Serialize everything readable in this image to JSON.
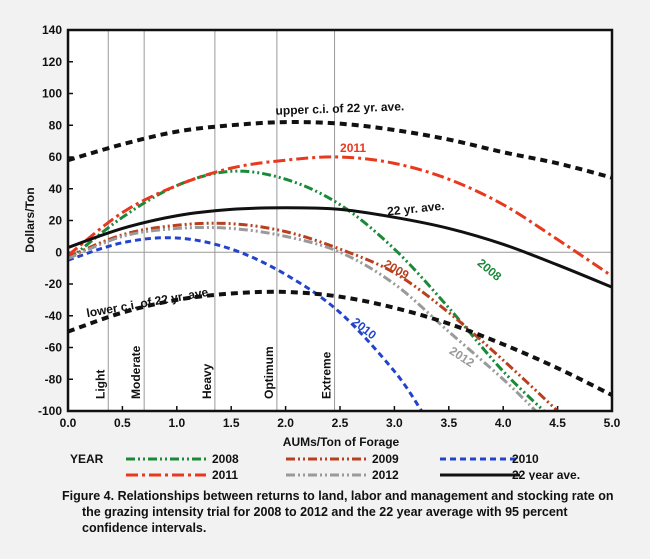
{
  "chart_data": {
    "type": "line",
    "ylabel": "Dollars/Ton",
    "xlabel": "AUMs/Ton of Forage",
    "xlim": [
      0.0,
      5.0
    ],
    "ylim": [
      -100,
      140
    ],
    "x_ticks": [
      "0.0",
      "0.5",
      "1.0",
      "1.5",
      "2.0",
      "2.5",
      "3.0",
      "3.5",
      "4.0",
      "4.5",
      "5.0"
    ],
    "y_ticks": [
      "-100",
      "-80",
      "-60",
      "-40",
      "-20",
      "0",
      "20",
      "40",
      "60",
      "80",
      "100",
      "120",
      "140"
    ],
    "stocking_rates": [
      {
        "label": "Light",
        "x": 0.37
      },
      {
        "label": "Moderate",
        "x": 0.7
      },
      {
        "label": "Heavy",
        "x": 1.35
      },
      {
        "label": "Optimum",
        "x": 1.92
      },
      {
        "label": "Extreme",
        "x": 2.45
      }
    ],
    "legend_title": "YEAR",
    "series": [
      {
        "name": "2008",
        "color": "#1a8a3a",
        "style": "dash-dot-dot",
        "x": [
          0,
          0.5,
          1.0,
          1.5,
          2.0,
          2.5,
          3.0,
          3.5,
          4.0,
          4.5
        ],
        "y": [
          -5,
          22,
          42,
          51,
          46,
          30,
          2,
          -35,
          -75,
          -108
        ]
      },
      {
        "name": "2009",
        "color": "#b8401e",
        "style": "dash-dot-dot",
        "x": [
          0,
          0.5,
          1.0,
          1.5,
          2.0,
          2.5,
          3.0,
          3.5,
          4.0,
          4.5
        ],
        "y": [
          -3,
          11,
          17,
          18,
          13,
          2,
          -13,
          -38,
          -68,
          -100
        ]
      },
      {
        "name": "2010",
        "color": "#2244cc",
        "style": "dash",
        "x": [
          0,
          0.5,
          1.0,
          1.5,
          2.0,
          2.5,
          3.0,
          3.25
        ],
        "y": [
          -5,
          6,
          9,
          2,
          -14,
          -38,
          -75,
          -100
        ]
      },
      {
        "name": "2011",
        "color": "#e8381e",
        "style": "dash-dot",
        "x": [
          0,
          0.5,
          1.0,
          1.5,
          2.0,
          2.5,
          3.0,
          3.5,
          4.0,
          4.5,
          5.0
        ],
        "y": [
          -2,
          25,
          42,
          53,
          58,
          60,
          56,
          46,
          30,
          8,
          -15
        ]
      },
      {
        "name": "2012",
        "color": "#9a9a9a",
        "style": "dash-dot-dot",
        "x": [
          0,
          0.5,
          1.0,
          1.5,
          2.0,
          2.5,
          3.0,
          3.5,
          4.0,
          4.3
        ],
        "y": [
          -4,
          10,
          15,
          15,
          10,
          0,
          -20,
          -50,
          -80,
          -100
        ]
      },
      {
        "name": "22 year ave.",
        "color": "#111111",
        "style": "solid",
        "x": [
          0,
          0.5,
          1.0,
          1.5,
          2.0,
          2.5,
          3.0,
          3.5,
          4.0,
          4.5,
          5.0
        ],
        "y": [
          3,
          15,
          23,
          27,
          28,
          27,
          22,
          15,
          5,
          -8,
          -22
        ]
      },
      {
        "name": "upper c.i. of 22 yr. ave.",
        "color": "#111111",
        "style": "dash-bold",
        "legend": false,
        "x": [
          0,
          0.5,
          1.0,
          1.5,
          2.0,
          2.5,
          3.0,
          3.5,
          4.0,
          4.5,
          5.0
        ],
        "y": [
          58,
          68,
          76,
          80,
          82,
          81,
          77,
          71,
          63,
          56,
          47
        ]
      },
      {
        "name": "lower c.i. of 22 yr. ave.",
        "color": "#111111",
        "style": "dash-bold",
        "legend": false,
        "x": [
          0,
          0.5,
          1.0,
          1.5,
          2.0,
          2.5,
          3.0,
          3.5,
          4.0,
          4.5,
          5.0
        ],
        "y": [
          -50,
          -38,
          -30,
          -26,
          -25,
          -28,
          -35,
          -45,
          -58,
          -73,
          -90
        ]
      }
    ],
    "annotations": [
      {
        "text": "upper c.i. of 22 yr. ave.",
        "x": 2.5,
        "y": 88,
        "rotate": -2,
        "color": "#111111"
      },
      {
        "text": "2011",
        "x": 2.62,
        "y": 63,
        "rotate": 0,
        "color": "#e8381e"
      },
      {
        "text": "22 yr. ave.",
        "x": 3.2,
        "y": 25,
        "rotate": -6,
        "color": "#111111"
      },
      {
        "text": "2008",
        "x": 3.85,
        "y": -13,
        "rotate": 40,
        "color": "#1a8a3a"
      },
      {
        "text": "2009",
        "x": 3.0,
        "y": -13,
        "rotate": 30,
        "color": "#b8401e"
      },
      {
        "text": "lower c.i. of 22 yr. ave.",
        "x": 0.75,
        "y": -34,
        "rotate": -10,
        "color": "#111111"
      },
      {
        "text": "2010",
        "x": 2.7,
        "y": -50,
        "rotate": 38,
        "color": "#2244cc"
      },
      {
        "text": "2012",
        "x": 3.6,
        "y": -68,
        "rotate": 33,
        "color": "#9a9a9a"
      }
    ],
    "grid": false
  },
  "caption": {
    "line1": "Figure 4. Relationships between returns to land, labor and management and stocking rate on",
    "line2": "the grazing intensity trial for 2008 to 2012 and the 22 year average with 95 percent",
    "line3": "confidence intervals."
  }
}
